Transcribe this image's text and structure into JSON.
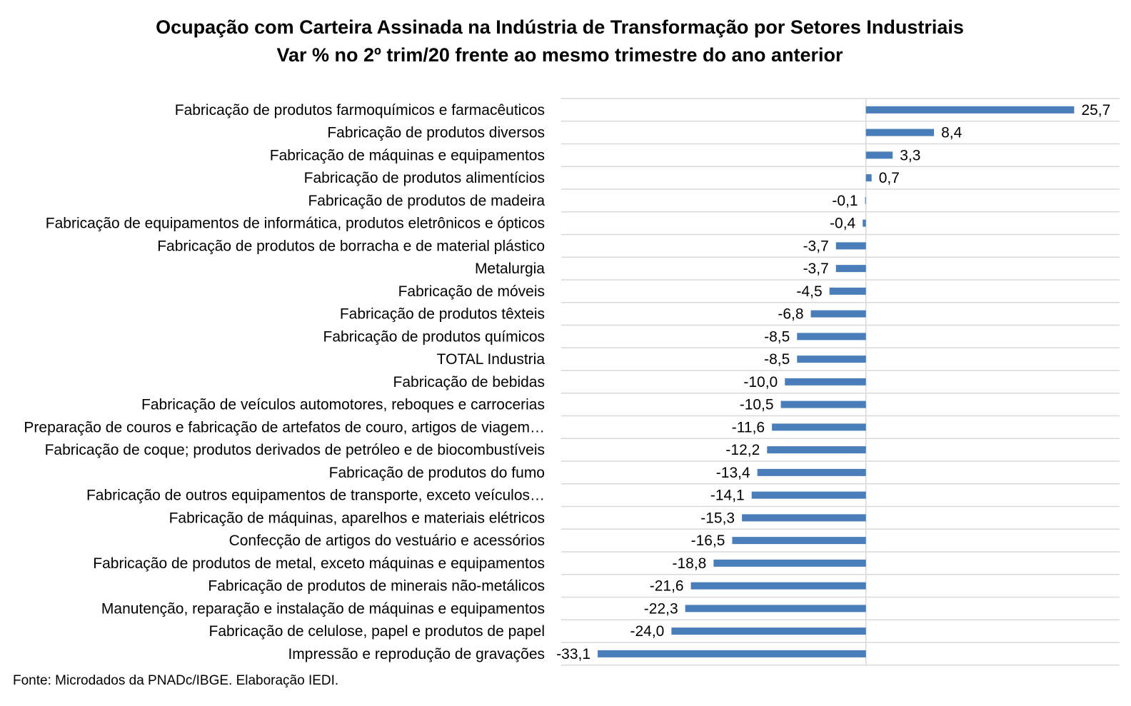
{
  "chart_data": {
    "type": "bar",
    "orientation": "horizontal",
    "title": "Ocupação com Carteira Assinada na Indústria de Transformação por Setores Industriais",
    "subtitle": "Var % no 2º trim/20 frente ao mesmo trimestre do ano anterior",
    "categories": [
      "Fabricação de produtos farmoquímicos e farmacêuticos",
      "Fabricação de produtos diversos",
      "Fabricação de máquinas e equipamentos",
      "Fabricação de produtos alimentícios",
      "Fabricação de produtos de madeira",
      "Fabricação de equipamentos de informática, produtos eletrônicos e ópticos",
      "Fabricação de produtos de borracha e de material plástico",
      "Metalurgia",
      "Fabricação de móveis",
      "Fabricação de produtos têxteis",
      "Fabricação de produtos químicos",
      "TOTAL Industria",
      "Fabricação de bebidas",
      "Fabricação de veículos automotores, reboques e carrocerias",
      "Preparação de couros e fabricação de artefatos de couro, artigos de viagem…",
      "Fabricação de coque; produtos derivados de petróleo e de biocombustíveis",
      "Fabricação de produtos do fumo",
      "Fabricação de outros equipamentos de transporte, exceto veículos…",
      "Fabricação de máquinas, aparelhos e materiais elétricos",
      "Confecção de artigos do vestuário e acessórios",
      "Fabricação de produtos de metal, exceto máquinas e equipamentos",
      "Fabricação de produtos de minerais não-metálicos",
      "Manutenção, reparação e instalação de máquinas e equipamentos",
      "Fabricação de celulose, papel e produtos de papel",
      "Impressão e reprodução de gravações"
    ],
    "values": [
      25.7,
      8.4,
      3.3,
      0.7,
      -0.1,
      -0.4,
      -3.7,
      -3.7,
      -4.5,
      -6.8,
      -8.5,
      -8.5,
      -10.0,
      -10.5,
      -11.6,
      -12.2,
      -13.4,
      -14.1,
      -15.3,
      -16.5,
      -18.8,
      -21.6,
      -22.3,
      -24.0,
      -33.1
    ],
    "value_labels": [
      "25,7",
      "8,4",
      "3,3",
      "0,7",
      "-0,1",
      "-0,4",
      "-3,7",
      "-3,7",
      "-4,5",
      "-6,8",
      "-8,5",
      "-8,5",
      "-10,0",
      "-10,5",
      "-11,6",
      "-12,2",
      "-13,4",
      "-14,1",
      "-15,3",
      "-16,5",
      "-18,8",
      "-21,6",
      "-22,3",
      "-24,0",
      "-33,1"
    ],
    "xlim": [
      -37.6,
      31.3
    ],
    "grid": true,
    "bar_color": "#4a7ebb",
    "gridline_color": "#d9d9d9"
  },
  "source": "Fonte: Microdados da PNADc/IBGE. Elaboração IEDI."
}
